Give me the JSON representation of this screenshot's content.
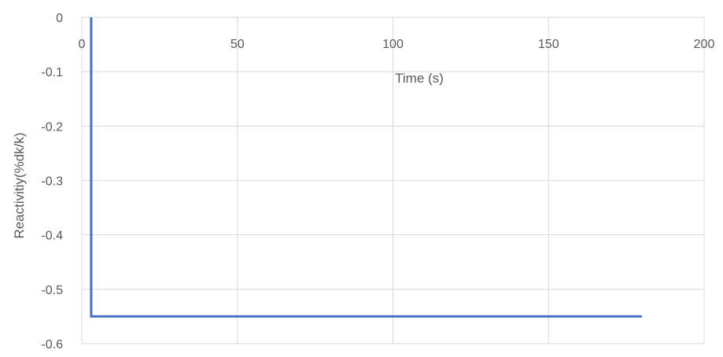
{
  "chart_data": {
    "type": "line",
    "title": "",
    "xlabel": "Time (s)",
    "ylabel": "Reactivitiy(%dk/k)",
    "xlim": [
      0,
      200
    ],
    "ylim": [
      -0.6,
      0
    ],
    "x_ticks": [
      0,
      50,
      100,
      150,
      200
    ],
    "y_ticks": [
      0,
      -0.1,
      -0.2,
      -0.3,
      -0.4,
      -0.5,
      -0.6
    ],
    "x_tick_labels": [
      "0",
      "50",
      "100",
      "150",
      "200"
    ],
    "y_tick_labels": [
      "0",
      "-0.1",
      "-0.2",
      "-0.3",
      "-0.4",
      "-0.5",
      "-0.6"
    ],
    "grid": true,
    "x_axis_position": "top",
    "series": [
      {
        "color": "#4472c4",
        "x": [
          3,
          3,
          180
        ],
        "y": [
          0,
          -0.55,
          -0.55
        ]
      }
    ]
  }
}
